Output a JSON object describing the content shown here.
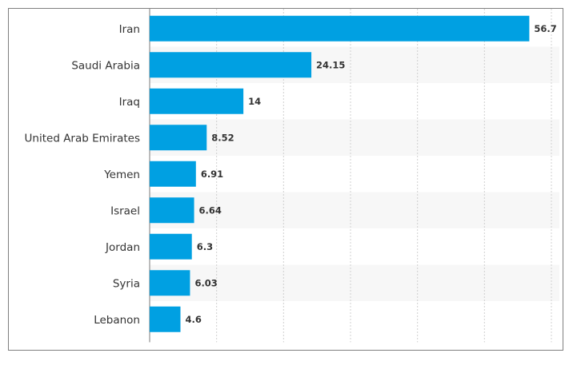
{
  "chart_data": {
    "type": "bar",
    "orientation": "horizontal",
    "title": "",
    "xlabel": "",
    "ylabel": "",
    "categories": [
      "Iran",
      "Saudi Arabia",
      "Iraq",
      "United Arab Emirates",
      "Yemen",
      "Israel",
      "Jordan",
      "Syria",
      "Lebanon"
    ],
    "values": [
      56.7,
      24.15,
      14,
      8.52,
      6.91,
      6.64,
      6.3,
      6.03,
      4.6
    ],
    "value_labels": [
      "56.7",
      "24.15",
      "14",
      "8.52",
      "6.91",
      "6.64",
      "6.3",
      "6.03",
      "4.6"
    ],
    "xlim": [
      0,
      60
    ],
    "x_grid_ticks": [
      10,
      20,
      30,
      40,
      50,
      60
    ],
    "grid": true,
    "bar_color": "#00a0e2",
    "stripe_color": "#f7f7f7",
    "legend": "none"
  }
}
